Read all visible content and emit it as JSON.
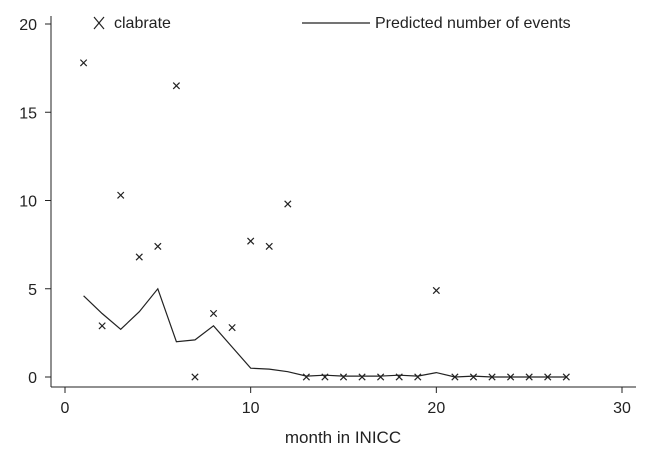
{
  "chart_data": {
    "type": "scatter",
    "xlabel": "month in INICC",
    "ylabel": "",
    "xlim": [
      0,
      30
    ],
    "ylim": [
      0,
      20
    ],
    "x_ticks": [
      0,
      10,
      20,
      30
    ],
    "y_ticks": [
      0,
      5,
      10,
      15,
      20
    ],
    "grid": false,
    "legend_position": "top",
    "series": [
      {
        "name": "clabrate",
        "kind": "scatter",
        "marker": "x",
        "points": [
          {
            "x": 1,
            "y": 17.8
          },
          {
            "x": 2,
            "y": 2.9
          },
          {
            "x": 3,
            "y": 10.3
          },
          {
            "x": 4,
            "y": 6.8
          },
          {
            "x": 5,
            "y": 7.4
          },
          {
            "x": 6,
            "y": 16.5
          },
          {
            "x": 7,
            "y": 0
          },
          {
            "x": 8,
            "y": 3.6
          },
          {
            "x": 9,
            "y": 2.8
          },
          {
            "x": 10,
            "y": 7.7
          },
          {
            "x": 11,
            "y": 7.4
          },
          {
            "x": 12,
            "y": 9.8
          },
          {
            "x": 13,
            "y": 0
          },
          {
            "x": 14,
            "y": 0
          },
          {
            "x": 15,
            "y": 0
          },
          {
            "x": 16,
            "y": 0
          },
          {
            "x": 17,
            "y": 0
          },
          {
            "x": 18,
            "y": 0
          },
          {
            "x": 19,
            "y": 0
          },
          {
            "x": 20,
            "y": 4.9
          },
          {
            "x": 21,
            "y": 0
          },
          {
            "x": 22,
            "y": 0
          },
          {
            "x": 23,
            "y": 0
          },
          {
            "x": 24,
            "y": 0
          },
          {
            "x": 25,
            "y": 0
          },
          {
            "x": 26,
            "y": 0
          },
          {
            "x": 27,
            "y": 0
          }
        ]
      },
      {
        "name": "Predicted number of events",
        "kind": "line",
        "points": [
          {
            "x": 1,
            "y": 4.6
          },
          {
            "x": 2,
            "y": 3.6
          },
          {
            "x": 3,
            "y": 2.7
          },
          {
            "x": 4,
            "y": 3.7
          },
          {
            "x": 5,
            "y": 5.0
          },
          {
            "x": 6,
            "y": 2.0
          },
          {
            "x": 7,
            "y": 2.1
          },
          {
            "x": 8,
            "y": 2.9
          },
          {
            "x": 9,
            "y": 1.7
          },
          {
            "x": 10,
            "y": 0.5
          },
          {
            "x": 11,
            "y": 0.45
          },
          {
            "x": 12,
            "y": 0.3
          },
          {
            "x": 13,
            "y": 0.05
          },
          {
            "x": 14,
            "y": 0.1
          },
          {
            "x": 15,
            "y": 0.05
          },
          {
            "x": 16,
            "y": 0.05
          },
          {
            "x": 17,
            "y": 0.05
          },
          {
            "x": 18,
            "y": 0.1
          },
          {
            "x": 19,
            "y": 0.05
          },
          {
            "x": 20,
            "y": 0.25
          },
          {
            "x": 21,
            "y": 0.0
          },
          {
            "x": 22,
            "y": 0.05
          },
          {
            "x": 23,
            "y": 0.0
          },
          {
            "x": 24,
            "y": 0.0
          },
          {
            "x": 25,
            "y": 0.0
          },
          {
            "x": 26,
            "y": 0.0
          },
          {
            "x": 27,
            "y": 0.0
          }
        ]
      }
    ]
  }
}
